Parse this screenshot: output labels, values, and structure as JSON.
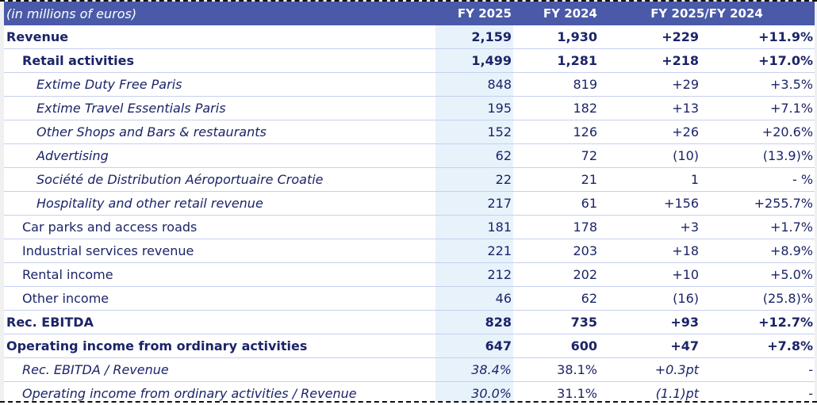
{
  "header": {
    "unit_label": "(in millions of euros)",
    "col_fy2025": "FY 2025",
    "col_fy2024": "FY 2024",
    "col_change": "FY 2025/FY 2024"
  },
  "colors": {
    "header_bg": "#4a5aa8",
    "text": "#1b2468",
    "highlight_col": "#e8f2fb",
    "row_divider": "#c6d0ef"
  },
  "rows": [
    {
      "label": "Revenue",
      "fy2025": "2,159",
      "fy2024": "1,930",
      "change": "+229",
      "pct": "+11.9%"
    },
    {
      "label": "Retail activities",
      "fy2025": "1,499",
      "fy2024": "1,281",
      "change": "+218",
      "pct": "+17.0%"
    },
    {
      "label": "Extime Duty Free Paris",
      "fy2025": "848",
      "fy2024": "819",
      "change": "+29",
      "pct": "+3.5%"
    },
    {
      "label": "Extime Travel Essentials Paris",
      "fy2025": "195",
      "fy2024": "182",
      "change": "+13",
      "pct": "+7.1%"
    },
    {
      "label": "Other Shops and Bars & restaurants",
      "fy2025": "152",
      "fy2024": "126",
      "change": "+26",
      "pct": "+20.6%"
    },
    {
      "label": "Advertising",
      "fy2025": "62",
      "fy2024": "72",
      "change": "(10)",
      "pct": "(13.9)%"
    },
    {
      "label": "Société de Distribution Aéroportuaire Croatie",
      "fy2025": "22",
      "fy2024": "21",
      "change": "1",
      "pct": "- %"
    },
    {
      "label": "Hospitality and other retail revenue",
      "fy2025": "217",
      "fy2024": "61",
      "change": "+156",
      "pct": "+255.7%"
    },
    {
      "label": "Car parks and access roads",
      "fy2025": "181",
      "fy2024": "178",
      "change": "+3",
      "pct": "+1.7%"
    },
    {
      "label": "Industrial services revenue",
      "fy2025": "221",
      "fy2024": "203",
      "change": "+18",
      "pct": "+8.9%"
    },
    {
      "label": "Rental income",
      "fy2025": "212",
      "fy2024": "202",
      "change": "+10",
      "pct": "+5.0%"
    },
    {
      "label": "Other income",
      "fy2025": "46",
      "fy2024": "62",
      "change": "(16)",
      "pct": "(25.8)%"
    },
    {
      "label": "Rec. EBITDA",
      "fy2025": "828",
      "fy2024": "735",
      "change": "+93",
      "pct": "+12.7%"
    },
    {
      "label": "Operating income from ordinary activities",
      "fy2025": "647",
      "fy2024": "600",
      "change": "+47",
      "pct": "+7.8%"
    },
    {
      "label": "Rec. EBITDA / Revenue",
      "fy2025": "38.4%",
      "fy2024": "38.1%",
      "change": "+0.3pt",
      "pct": "-"
    },
    {
      "label": "Operating income from ordinary activities / Revenue",
      "fy2025": "30.0%",
      "fy2024": "31.1%",
      "change": "(1.1)pt",
      "pct": "-"
    }
  ]
}
